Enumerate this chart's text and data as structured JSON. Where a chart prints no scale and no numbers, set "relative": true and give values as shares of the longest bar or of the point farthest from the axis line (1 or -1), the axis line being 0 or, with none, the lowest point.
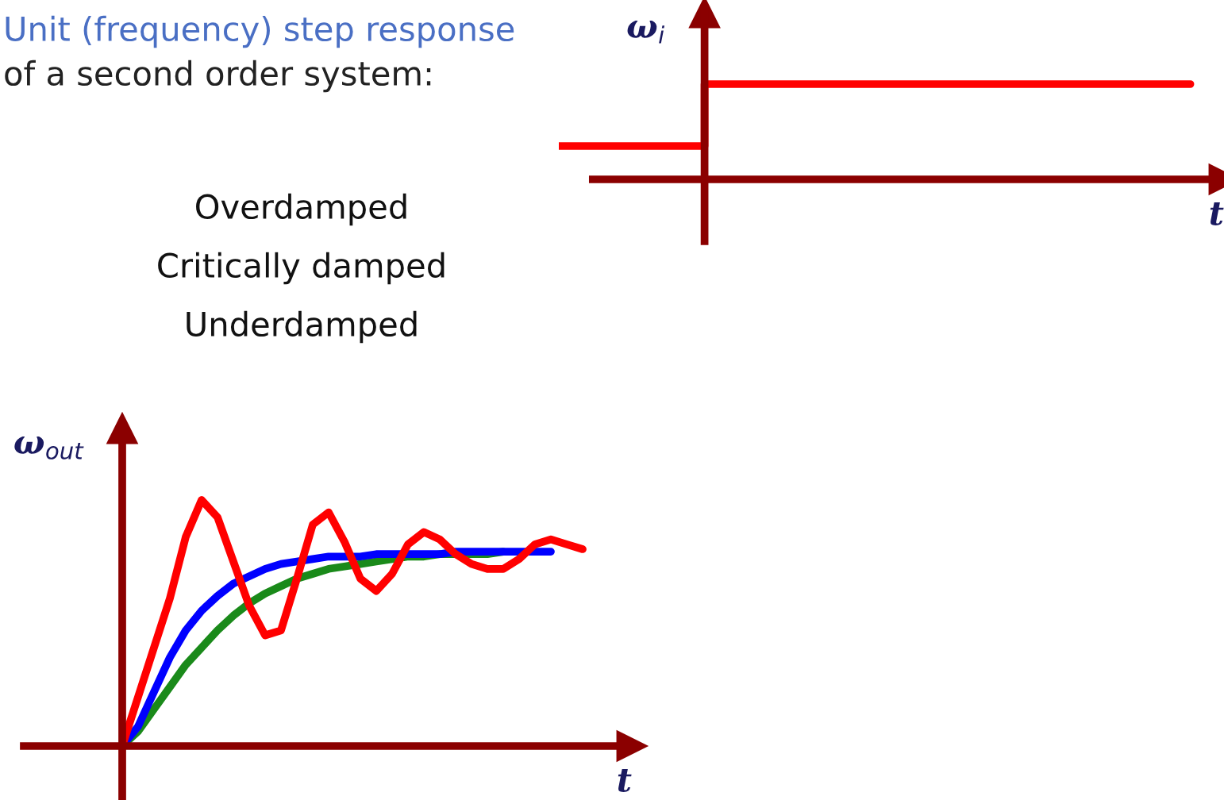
{
  "chart_data": [
    {
      "type": "step",
      "title": "Unit (frequency) step response",
      "subtitle": "of a second order system:",
      "relative": true,
      "ylabel": "ω$_{i}$",
      "xlabel": "t",
      "categories": [
        null,
        null,
        null,
        null,
        null,
        null,
        null,
        null,
        null,
        null,
        null,
        null,
        null,
        null
      ],
      "series": [
        {
          "color": "#ff0000",
          "values": [
            0.35,
            0.35,
            0.35,
            1,
            1,
            1,
            1,
            1,
            1,
            1,
            1,
            1,
            1,
            1
          ]
        }
      ]
    },
    {
      "type": "line",
      "relative": true,
      "ylabel": "ω$_{out}$",
      "xlabel": "t",
      "annotations": [
        "Overdamped",
        "Critically damped",
        "Underdamped"
      ],
      "categories": [
        null,
        null,
        null,
        null,
        null,
        null,
        null,
        null,
        null,
        null,
        null,
        null,
        null,
        null,
        null,
        null,
        null,
        null,
        null,
        null,
        null,
        null,
        null,
        null,
        null,
        null,
        null,
        null,
        null,
        null
      ],
      "series": [
        {
          "color": "#1a8a1a",
          "values": [
            0,
            0.06,
            0.15,
            0.24,
            0.33,
            0.4,
            0.47,
            0.53,
            0.58,
            0.62,
            0.65,
            0.68,
            0.7,
            0.72,
            0.73,
            0.74,
            0.75,
            0.76,
            0.77,
            0.77,
            0.78,
            0.78,
            0.78,
            0.78,
            0.79,
            null,
            null,
            null,
            null,
            null
          ]
        },
        {
          "color": "#0000ff",
          "values": [
            0,
            0.08,
            0.22,
            0.36,
            0.47,
            0.55,
            0.61,
            0.66,
            0.69,
            0.72,
            0.74,
            0.75,
            0.76,
            0.77,
            0.77,
            0.77,
            0.78,
            0.78,
            0.78,
            0.78,
            0.78,
            0.79,
            0.79,
            0.79,
            0.79,
            0.79,
            0.79,
            0.79,
            null,
            null
          ]
        },
        {
          "color": "#ff0000",
          "values": [
            0,
            0.2,
            0.4,
            0.6,
            0.85,
            1.0,
            0.93,
            0.75,
            0.57,
            0.45,
            0.47,
            0.68,
            0.9,
            0.95,
            0.83,
            0.68,
            0.63,
            0.7,
            0.82,
            0.87,
            0.84,
            0.78,
            0.74,
            0.72,
            0.72,
            0.76,
            0.82,
            0.84,
            0.82,
            0.8
          ]
        }
      ]
    }
  ]
}
